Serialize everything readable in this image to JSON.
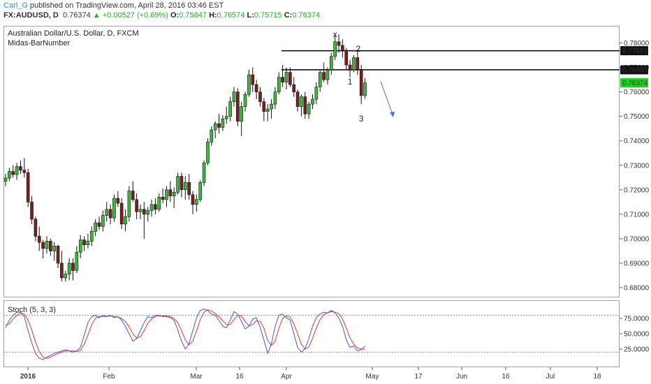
{
  "header": {
    "user": "Carl_G",
    "published_text": "published on TradingView.com, April 28, 2016 03:46 EST",
    "symbol": "FX:AUDUSD, D",
    "last": "0.76374",
    "change": "▲ +0.00527 (+0.69%)",
    "o_label": "O:",
    "o_value": "0.75847",
    "h_label": "H:",
    "h_value": "0.76574",
    "l_label": "L:",
    "l_value": "0.75715",
    "c_label": "C:",
    "c_value": "0.76374"
  },
  "chart_data": {
    "type": "candlestick",
    "title": "Australian Dollar/U.S. Dollar, D, FXCM",
    "indicator": "Midas-BarNumber",
    "colors": {
      "up": "#3cb83c",
      "down": "#7a1f1f",
      "wick": "#111111",
      "stoch_k": "#4455ee",
      "stoch_d": "#ee3333",
      "price_tag": "#22cc22",
      "arrow": "#4a6fdc"
    },
    "ylim": [
      0.676,
      0.787
    ],
    "y_ticks": [
      "0.78000",
      "0.77000",
      "0.76000",
      "0.75000",
      "0.74000",
      "0.73000",
      "0.72000",
      "0.71000",
      "0.70000",
      "0.69000",
      "0.68000"
    ],
    "x_ticks": [
      "2016",
      "Feb",
      "Mar",
      "16",
      "Apr",
      "May",
      "17",
      "Jun",
      "16",
      "Jul",
      "18"
    ],
    "price_tags": [
      "0.77683",
      "0.76903",
      "0.76374"
    ],
    "horizontal_levels": [
      0.77683,
      0.76903
    ],
    "annotations": [
      "x",
      "2",
      "1",
      "3"
    ],
    "ohlc": [
      [
        0.7235,
        0.7265,
        0.7215,
        0.7248
      ],
      [
        0.7248,
        0.729,
        0.7235,
        0.7275
      ],
      [
        0.7275,
        0.73,
        0.725,
        0.7262
      ],
      [
        0.7262,
        0.731,
        0.724,
        0.7295
      ],
      [
        0.7295,
        0.732,
        0.7265,
        0.728
      ],
      [
        0.728,
        0.733,
        0.725,
        0.727
      ],
      [
        0.727,
        0.7285,
        0.713,
        0.715
      ],
      [
        0.715,
        0.7175,
        0.706,
        0.708
      ],
      [
        0.708,
        0.709,
        0.699,
        0.701
      ],
      [
        0.701,
        0.705,
        0.695,
        0.6985
      ],
      [
        0.6985,
        0.6995,
        0.692,
        0.696
      ],
      [
        0.696,
        0.701,
        0.694,
        0.699
      ],
      [
        0.699,
        0.7,
        0.693,
        0.695
      ],
      [
        0.695,
        0.6985,
        0.691,
        0.697
      ],
      [
        0.697,
        0.6975,
        0.688,
        0.69
      ],
      [
        0.69,
        0.695,
        0.6825,
        0.684
      ],
      [
        0.684,
        0.687,
        0.6825,
        0.6855
      ],
      [
        0.6855,
        0.692,
        0.683,
        0.69
      ],
      [
        0.69,
        0.692,
        0.683,
        0.687
      ],
      [
        0.687,
        0.697,
        0.686,
        0.6945
      ],
      [
        0.6945,
        0.7015,
        0.692,
        0.6995
      ],
      [
        0.6995,
        0.701,
        0.695,
        0.6975
      ],
      [
        0.6975,
        0.702,
        0.696,
        0.699
      ],
      [
        0.699,
        0.705,
        0.697,
        0.703
      ],
      [
        0.703,
        0.708,
        0.701,
        0.7065
      ],
      [
        0.7065,
        0.709,
        0.7035,
        0.705
      ],
      [
        0.705,
        0.7115,
        0.703,
        0.7095
      ],
      [
        0.7095,
        0.715,
        0.707,
        0.712
      ],
      [
        0.712,
        0.714,
        0.706,
        0.7085
      ],
      [
        0.7085,
        0.718,
        0.707,
        0.7165
      ],
      [
        0.7165,
        0.7195,
        0.713,
        0.7145
      ],
      [
        0.7145,
        0.7165,
        0.704,
        0.706
      ],
      [
        0.706,
        0.712,
        0.703,
        0.709
      ],
      [
        0.709,
        0.7215,
        0.707,
        0.7195
      ],
      [
        0.7195,
        0.7235,
        0.715,
        0.716
      ],
      [
        0.716,
        0.7185,
        0.708,
        0.711
      ],
      [
        0.711,
        0.714,
        0.708,
        0.712
      ],
      [
        0.712,
        0.715,
        0.7,
        0.71
      ],
      [
        0.71,
        0.713,
        0.707,
        0.7115
      ],
      [
        0.7115,
        0.716,
        0.709,
        0.714
      ],
      [
        0.714,
        0.7165,
        0.71,
        0.712
      ],
      [
        0.712,
        0.7185,
        0.711,
        0.717
      ],
      [
        0.717,
        0.7205,
        0.7145,
        0.716
      ],
      [
        0.716,
        0.7215,
        0.713,
        0.72
      ],
      [
        0.72,
        0.7235,
        0.715,
        0.7175
      ],
      [
        0.7175,
        0.721,
        0.7125,
        0.719
      ],
      [
        0.719,
        0.727,
        0.718,
        0.7255
      ],
      [
        0.7255,
        0.727,
        0.717,
        0.72
      ],
      [
        0.72,
        0.7255,
        0.716,
        0.723
      ],
      [
        0.723,
        0.7265,
        0.716,
        0.718
      ],
      [
        0.718,
        0.7195,
        0.71,
        0.714
      ],
      [
        0.714,
        0.718,
        0.711,
        0.716
      ],
      [
        0.716,
        0.724,
        0.715,
        0.723
      ],
      [
        0.723,
        0.732,
        0.7215,
        0.731
      ],
      [
        0.731,
        0.741,
        0.73,
        0.7395
      ],
      [
        0.7395,
        0.746,
        0.738,
        0.7445
      ],
      [
        0.7445,
        0.748,
        0.741,
        0.747
      ],
      [
        0.747,
        0.751,
        0.743,
        0.7455
      ],
      [
        0.7455,
        0.7505,
        0.744,
        0.749
      ],
      [
        0.749,
        0.754,
        0.747,
        0.75
      ],
      [
        0.75,
        0.758,
        0.748,
        0.756
      ],
      [
        0.756,
        0.762,
        0.754,
        0.76
      ],
      [
        0.76,
        0.7615,
        0.746,
        0.748
      ],
      [
        0.748,
        0.756,
        0.742,
        0.754
      ],
      [
        0.754,
        0.76,
        0.752,
        0.759
      ],
      [
        0.759,
        0.769,
        0.758,
        0.767
      ],
      [
        0.767,
        0.77,
        0.76,
        0.763
      ],
      [
        0.763,
        0.765,
        0.757,
        0.76
      ],
      [
        0.76,
        0.762,
        0.754,
        0.756
      ],
      [
        0.756,
        0.7575,
        0.748,
        0.752
      ],
      [
        0.752,
        0.755,
        0.748,
        0.753
      ],
      [
        0.753,
        0.757,
        0.749,
        0.755
      ],
      [
        0.755,
        0.762,
        0.753,
        0.76
      ],
      [
        0.76,
        0.768,
        0.759,
        0.766
      ],
      [
        0.766,
        0.771,
        0.762,
        0.764
      ],
      [
        0.764,
        0.77,
        0.761,
        0.768
      ],
      [
        0.768,
        0.77,
        0.762,
        0.763
      ],
      [
        0.763,
        0.766,
        0.758,
        0.76
      ],
      [
        0.76,
        0.761,
        0.752,
        0.754
      ],
      [
        0.754,
        0.759,
        0.75,
        0.758
      ],
      [
        0.758,
        0.76,
        0.749,
        0.751
      ],
      [
        0.751,
        0.756,
        0.749,
        0.755
      ],
      [
        0.755,
        0.759,
        0.753,
        0.757
      ],
      [
        0.757,
        0.764,
        0.755,
        0.762
      ],
      [
        0.762,
        0.769,
        0.76,
        0.768
      ],
      [
        0.768,
        0.772,
        0.764,
        0.765
      ],
      [
        0.765,
        0.77,
        0.763,
        0.769
      ],
      [
        0.769,
        0.776,
        0.767,
        0.7745
      ],
      [
        0.7745,
        0.783,
        0.773,
        0.7805
      ],
      [
        0.7805,
        0.7835,
        0.776,
        0.779
      ],
      [
        0.779,
        0.7815,
        0.774,
        0.777
      ],
      [
        0.777,
        0.778,
        0.769,
        0.771
      ],
      [
        0.771,
        0.773,
        0.766,
        0.769
      ],
      [
        0.769,
        0.775,
        0.768,
        0.774
      ],
      [
        0.774,
        0.7768,
        0.767,
        0.769
      ],
      [
        0.769,
        0.771,
        0.755,
        0.7585
      ],
      [
        0.7585,
        0.7657,
        0.7572,
        0.7637
      ]
    ],
    "stoch": {
      "name": "Stoch (5, 3, 3)",
      "ylim": [
        0,
        100
      ],
      "y_ticks": [
        "75.0000",
        "50.0000",
        "25.0000"
      ],
      "levels": [
        80,
        20
      ],
      "k": [
        60,
        72,
        80,
        85,
        85,
        78,
        55,
        35,
        18,
        10,
        8,
        12,
        15,
        18,
        20,
        22,
        24,
        22,
        20,
        22,
        28,
        48,
        68,
        78,
        80,
        76,
        80,
        78,
        80,
        76,
        78,
        72,
        62,
        50,
        38,
        42,
        55,
        68,
        78,
        76,
        80,
        80,
        78,
        78,
        76,
        72,
        56,
        38,
        25,
        34,
        55,
        76,
        88,
        90,
        88,
        82,
        80,
        72,
        62,
        60,
        72,
        86,
        82,
        70,
        58,
        62,
        74,
        76,
        60,
        40,
        18,
        34,
        62,
        80,
        82,
        76,
        72,
        50,
        28,
        20,
        26,
        42,
        62,
        76,
        82,
        85,
        84,
        88,
        84,
        76,
        62,
        40,
        28,
        30,
        22,
        24,
        30
      ],
      "d": [
        64,
        66,
        74,
        80,
        83,
        82,
        72,
        56,
        36,
        21,
        12,
        10,
        12,
        15,
        18,
        20,
        22,
        22,
        22,
        21,
        23,
        33,
        48,
        65,
        75,
        78,
        78,
        78,
        79,
        78,
        77,
        75,
        70,
        61,
        50,
        43,
        45,
        55,
        67,
        74,
        78,
        79,
        79,
        79,
        78,
        75,
        68,
        55,
        40,
        32,
        38,
        55,
        73,
        85,
        89,
        87,
        83,
        78,
        71,
        65,
        65,
        73,
        80,
        79,
        70,
        63,
        65,
        71,
        70,
        59,
        39,
        31,
        38,
        59,
        75,
        79,
        77,
        66,
        50,
        33,
        25,
        29,
        43,
        60,
        73,
        81,
        84,
        86,
        85,
        83,
        74,
        59,
        43,
        33,
        27,
        25,
        25
      ]
    }
  }
}
